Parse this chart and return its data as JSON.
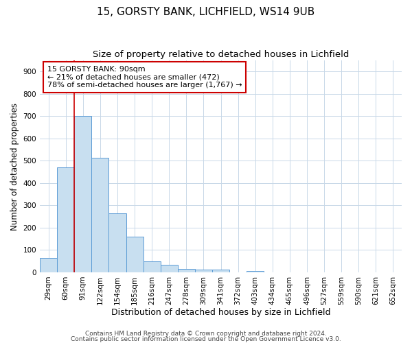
{
  "title1": "15, GORSTY BANK, LICHFIELD, WS14 9UB",
  "title2": "Size of property relative to detached houses in Lichfield",
  "xlabel": "Distribution of detached houses by size in Lichfield",
  "ylabel": "Number of detached properties",
  "categories": [
    "29sqm",
    "60sqm",
    "91sqm",
    "122sqm",
    "154sqm",
    "185sqm",
    "216sqm",
    "247sqm",
    "278sqm",
    "309sqm",
    "341sqm",
    "372sqm",
    "403sqm",
    "434sqm",
    "465sqm",
    "496sqm",
    "527sqm",
    "559sqm",
    "590sqm",
    "621sqm",
    "652sqm"
  ],
  "values": [
    65,
    470,
    700,
    515,
    265,
    160,
    48,
    33,
    15,
    12,
    12,
    1,
    5,
    0,
    0,
    0,
    0,
    0,
    0,
    0,
    0
  ],
  "bar_color": "#c8dff0",
  "bar_edge_color": "#5b9bd5",
  "highlight_index": 2,
  "highlight_line_color": "#cc0000",
  "annotation_text": "15 GORSTY BANK: 90sqm\n← 21% of detached houses are smaller (472)\n78% of semi-detached houses are larger (1,767) →",
  "annotation_box_color": "#ffffff",
  "annotation_box_edge_color": "#cc0000",
  "ylim": [
    0,
    950
  ],
  "yticks": [
    0,
    100,
    200,
    300,
    400,
    500,
    600,
    700,
    800,
    900
  ],
  "footer1": "Contains HM Land Registry data © Crown copyright and database right 2024.",
  "footer2": "Contains public sector information licensed under the Open Government Licence v3.0.",
  "background_color": "#ffffff",
  "grid_color": "#c8d8e8",
  "title1_fontsize": 11,
  "title2_fontsize": 9.5,
  "xlabel_fontsize": 9,
  "ylabel_fontsize": 8.5,
  "tick_fontsize": 7.5,
  "annotation_fontsize": 8,
  "footer_fontsize": 6.5
}
